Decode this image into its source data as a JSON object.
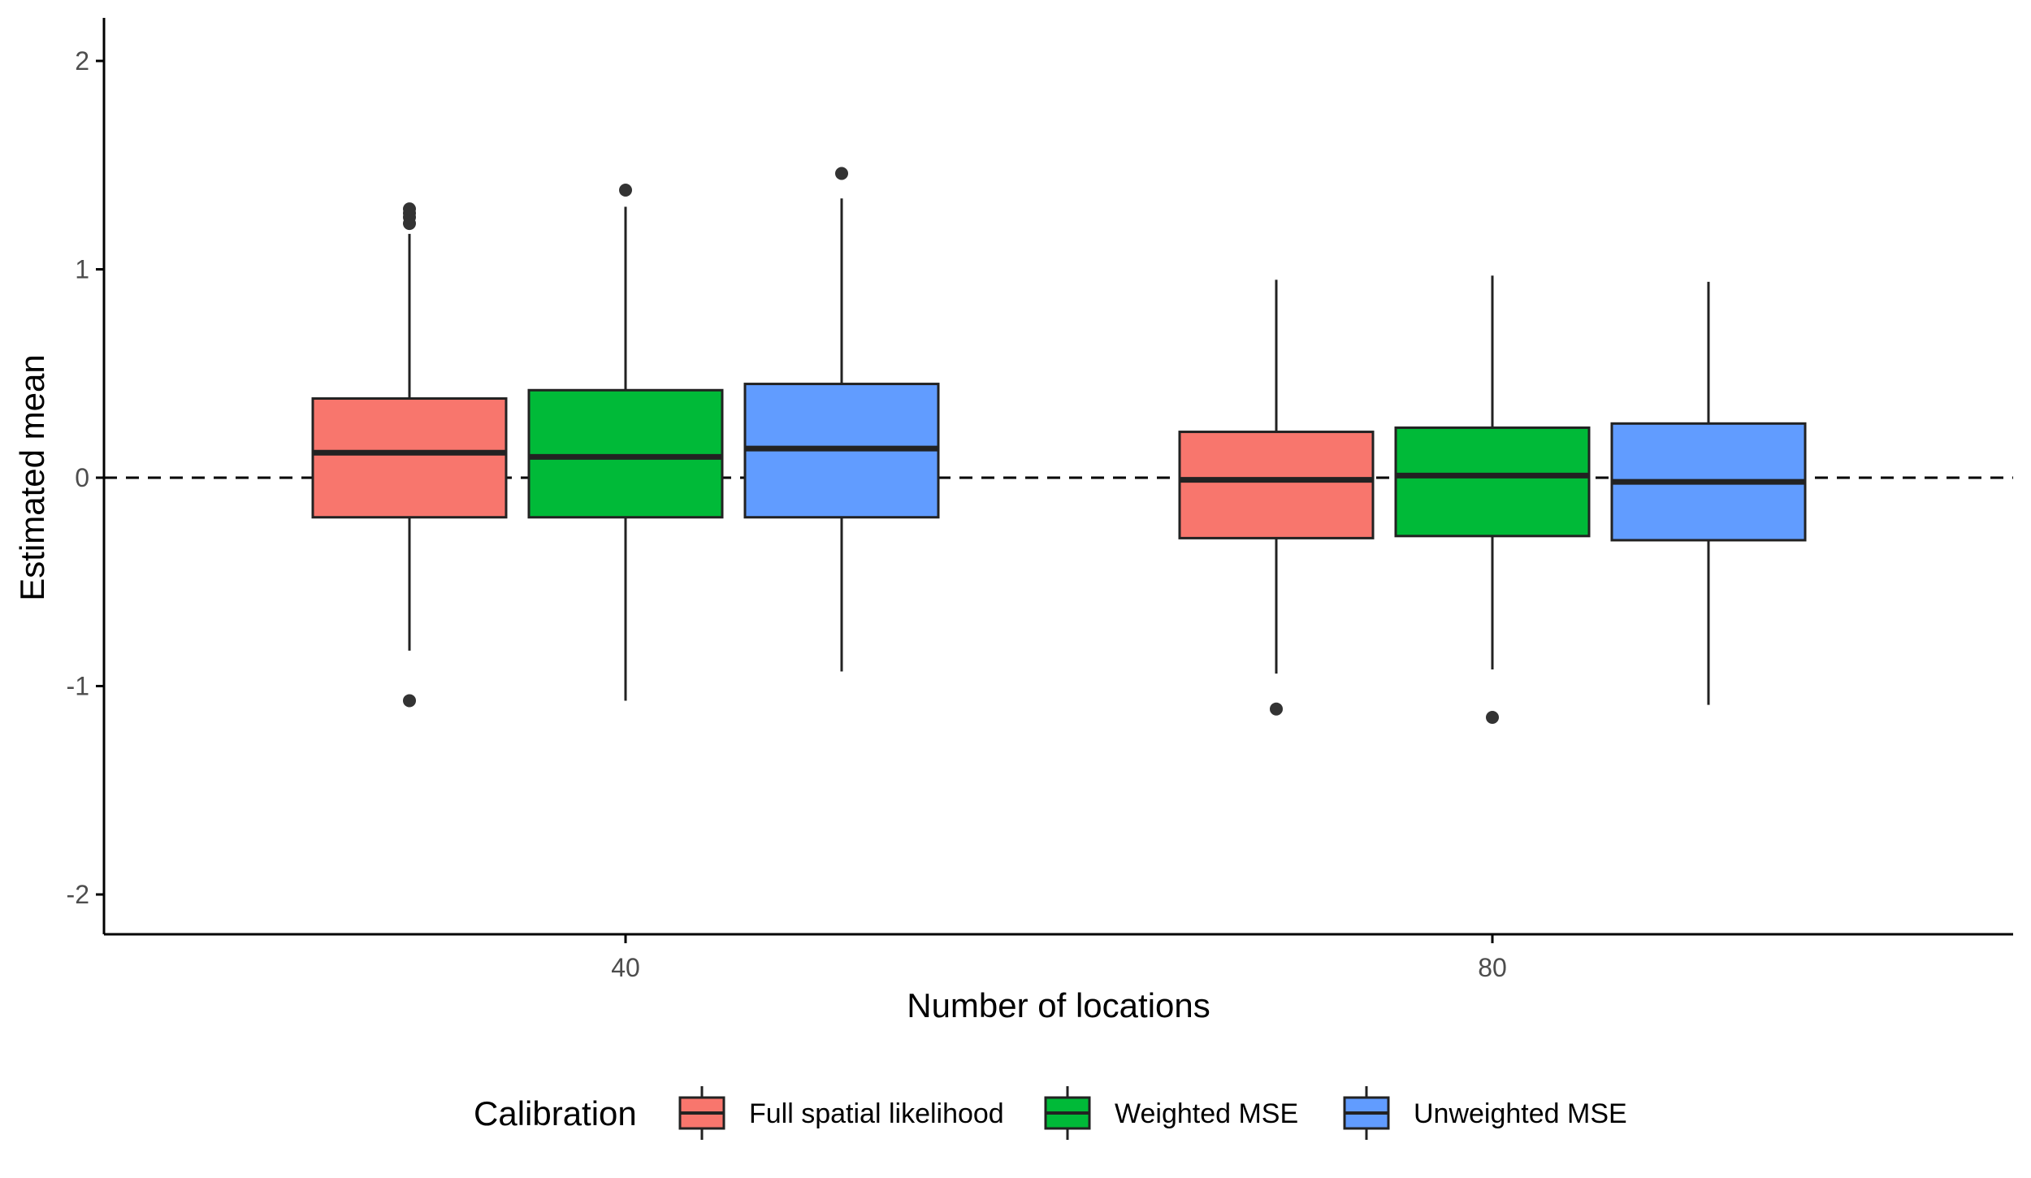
{
  "chart_data": {
    "type": "boxplot",
    "xlabel": "Number of locations",
    "ylabel": "Estimated mean",
    "ylim": [
      -2.2,
      2.2
    ],
    "yticks": [
      -2,
      -1,
      0,
      1,
      2
    ],
    "categories": [
      "40",
      "80"
    ],
    "reference_line": {
      "y": 0,
      "style": "dashed"
    },
    "legend": {
      "title": "Calibration",
      "position": "bottom"
    },
    "series": [
      {
        "name": "Full spatial likelihood",
        "color": "#F8766D",
        "boxes": [
          {
            "category": "40",
            "lower_whisker": -0.83,
            "q1": -0.19,
            "median": 0.12,
            "q3": 0.38,
            "upper_whisker": 1.17,
            "outliers": [
              -1.07,
              1.22,
              1.25,
              1.27,
              1.29
            ]
          },
          {
            "category": "80",
            "lower_whisker": -0.94,
            "q1": -0.29,
            "median": -0.01,
            "q3": 0.22,
            "upper_whisker": 0.95,
            "outliers": [
              -1.11
            ]
          }
        ]
      },
      {
        "name": "Weighted MSE",
        "color": "#00BA38",
        "boxes": [
          {
            "category": "40",
            "lower_whisker": -1.07,
            "q1": -0.19,
            "median": 0.1,
            "q3": 0.42,
            "upper_whisker": 1.3,
            "outliers": [
              1.38
            ]
          },
          {
            "category": "80",
            "lower_whisker": -0.92,
            "q1": -0.28,
            "median": 0.01,
            "q3": 0.24,
            "upper_whisker": 0.97,
            "outliers": [
              -1.15
            ]
          }
        ]
      },
      {
        "name": "Unweighted MSE",
        "color": "#619CFF",
        "boxes": [
          {
            "category": "40",
            "lower_whisker": -0.93,
            "q1": -0.19,
            "median": 0.14,
            "q3": 0.45,
            "upper_whisker": 1.34,
            "outliers": [
              1.46
            ]
          },
          {
            "category": "80",
            "lower_whisker": -1.09,
            "q1": -0.3,
            "median": -0.02,
            "q3": 0.26,
            "upper_whisker": 0.94,
            "outliers": []
          }
        ]
      }
    ]
  }
}
